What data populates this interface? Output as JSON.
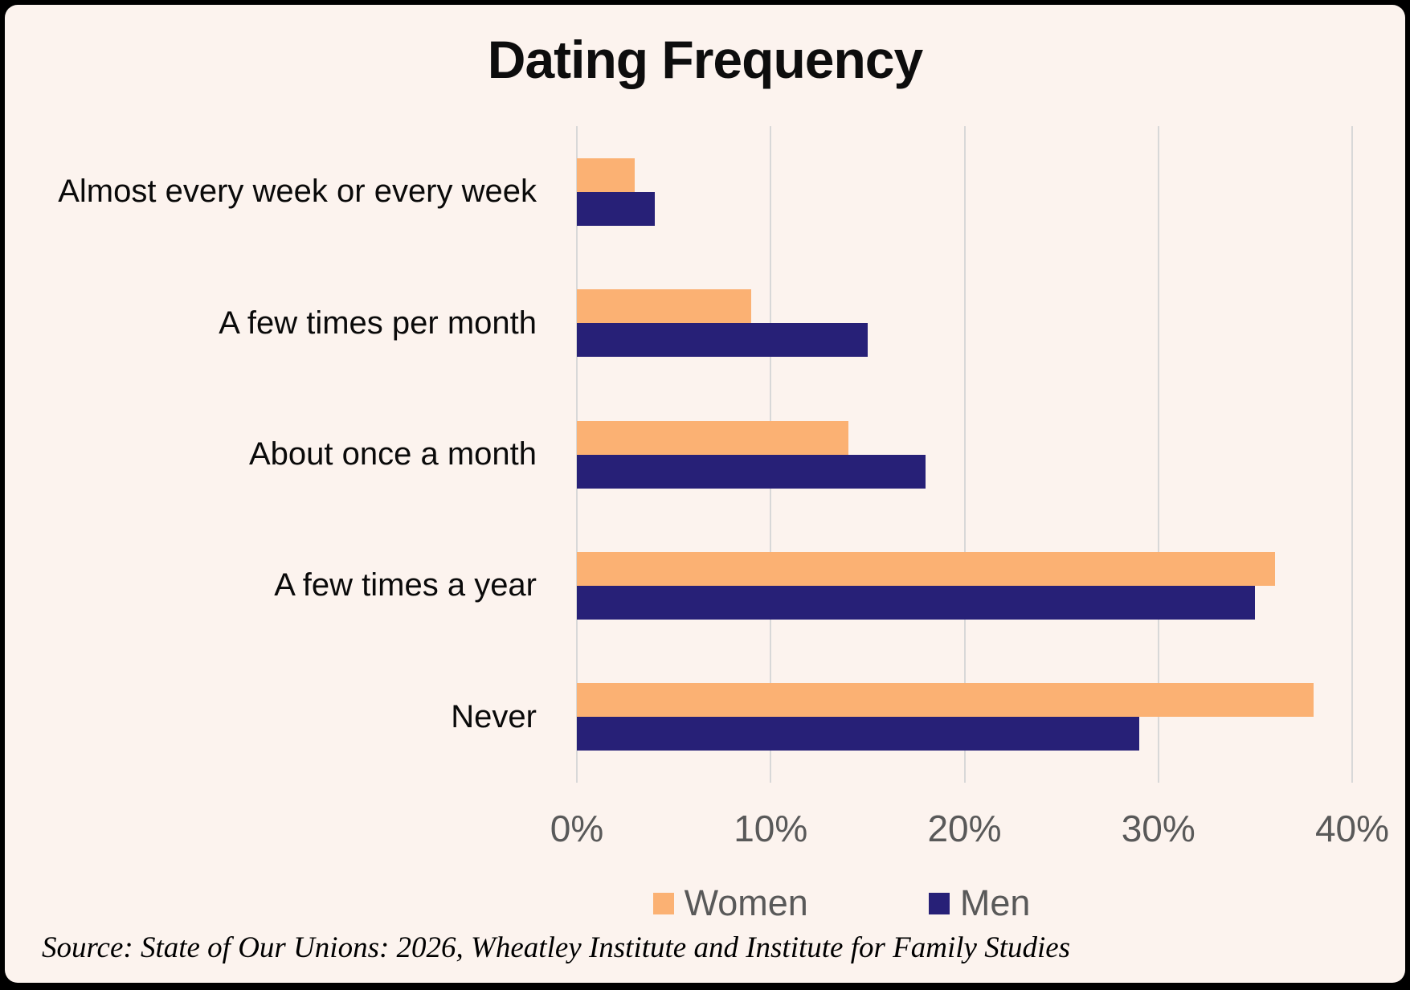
{
  "title": "Dating Frequency",
  "source": "Source: State of Our Unions: 2026, Wheatley Institute and Institute for Family Studies",
  "colors": {
    "women": "#FBB173",
    "men": "#272077",
    "background": "#FCF3EE",
    "gridline": "#D8D8D8",
    "axis_text": "#595959",
    "title_text": "#0D0D0D"
  },
  "legend": [
    {
      "label": "Women",
      "color": "#FBB173"
    },
    {
      "label": "Men",
      "color": "#272077"
    }
  ],
  "chart_data": {
    "type": "bar",
    "orientation": "horizontal",
    "title": "Dating Frequency",
    "categories": [
      "Almost every week or every week",
      "A few times per month",
      "About once a month",
      "A few times a year",
      "Never"
    ],
    "series": [
      {
        "name": "Women",
        "color": "#FBB173",
        "values": [
          3,
          9,
          14,
          36,
          38
        ]
      },
      {
        "name": "Men",
        "color": "#272077",
        "values": [
          4,
          15,
          18,
          35,
          29
        ]
      }
    ],
    "xlabel": "",
    "ylabel": "",
    "xlim": [
      0,
      40
    ],
    "x_ticks": [
      "0%",
      "10%",
      "20%",
      "30%",
      "40%"
    ],
    "grid": true,
    "legend_position": "bottom"
  }
}
